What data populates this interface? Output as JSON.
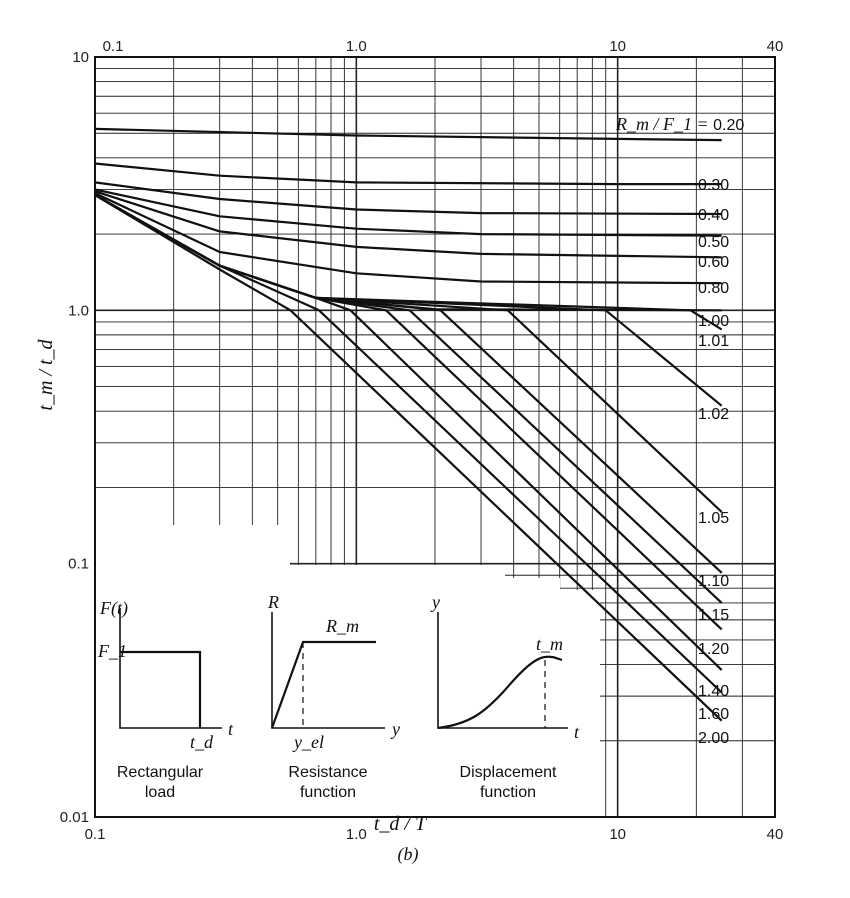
{
  "chart_data": {
    "type": "line",
    "xscale": "log",
    "yscale": "log",
    "xlim": [
      0.1,
      40
    ],
    "ylim": [
      0.01,
      10
    ],
    "xlabel": "t_d / T",
    "ylabel": "t_m / t_d",
    "x_ticks_bottom": [
      "0.1",
      "1.0",
      "10",
      "40"
    ],
    "x_ticks_top": [
      "0.1",
      "1.0",
      "10",
      "40"
    ],
    "y_ticks": [
      "10",
      "1.0",
      "0.1",
      "0.01"
    ],
    "caption": "(b)",
    "series": [
      {
        "name": "0.20",
        "x": [
          0.1,
          1,
          10,
          25
        ],
        "y": [
          5.2,
          4.9,
          4.75,
          4.7
        ]
      },
      {
        "name": "0.30",
        "x": [
          0.1,
          0.3,
          1,
          10,
          25
        ],
        "y": [
          3.8,
          3.4,
          3.2,
          3.15,
          3.15
        ]
      },
      {
        "name": "0.40",
        "x": [
          0.1,
          0.3,
          1,
          3,
          25
        ],
        "y": [
          3.2,
          2.75,
          2.5,
          2.42,
          2.4
        ]
      },
      {
        "name": "0.50",
        "x": [
          0.1,
          0.3,
          1,
          3,
          25
        ],
        "y": [
          3.0,
          2.35,
          2.1,
          2.0,
          1.97
        ]
      },
      {
        "name": "0.60",
        "x": [
          0.1,
          0.3,
          1,
          3,
          25
        ],
        "y": [
          2.95,
          2.05,
          1.78,
          1.67,
          1.62
        ]
      },
      {
        "name": "0.80",
        "x": [
          0.1,
          0.3,
          1,
          3,
          25
        ],
        "y": [
          2.9,
          1.7,
          1.4,
          1.3,
          1.28
        ]
      },
      {
        "name": "1.00",
        "x": [
          0.1,
          0.3,
          0.7,
          2,
          25
        ],
        "y": [
          2.85,
          1.5,
          1.12,
          1.01,
          1.0
        ]
      },
      {
        "name": "1.01",
        "x": [
          0.1,
          0.3,
          0.7,
          19,
          25
        ],
        "y": [
          2.85,
          1.5,
          1.12,
          1.0,
          0.84
        ]
      },
      {
        "name": "1.02",
        "x": [
          0.1,
          0.3,
          0.7,
          9,
          25
        ],
        "y": [
          2.85,
          1.5,
          1.12,
          1.0,
          0.42
        ]
      },
      {
        "name": "1.05",
        "x": [
          0.1,
          0.3,
          0.7,
          3.8,
          25
        ],
        "y": [
          2.85,
          1.5,
          1.12,
          1.0,
          0.16
        ]
      },
      {
        "name": "1.10",
        "x": [
          0.1,
          0.3,
          0.7,
          2.1,
          25
        ],
        "y": [
          2.85,
          1.5,
          1.12,
          1.0,
          0.092
        ]
      },
      {
        "name": "1.15",
        "x": [
          0.1,
          0.3,
          0.7,
          1.6,
          25
        ],
        "y": [
          2.85,
          1.5,
          1.12,
          1.0,
          0.07
        ]
      },
      {
        "name": "1.20",
        "x": [
          0.1,
          0.3,
          0.7,
          1.3,
          25
        ],
        "y": [
          2.85,
          1.5,
          1.12,
          1.0,
          0.055
        ]
      },
      {
        "name": "1.40",
        "x": [
          0.1,
          0.3,
          0.7,
          0.95,
          25
        ],
        "y": [
          2.85,
          1.5,
          1.12,
          1.0,
          0.038
        ]
      },
      {
        "name": "1.60",
        "x": [
          0.1,
          0.3,
          0.72,
          25
        ],
        "y": [
          2.85,
          1.5,
          1.0,
          0.031
        ]
      },
      {
        "name": "2.00",
        "x": [
          0.1,
          0.3,
          0.56,
          25
        ],
        "y": [
          2.85,
          1.45,
          1.0,
          0.024
        ]
      }
    ],
    "curve_label_prefix": "R_m / F_1 =",
    "insets": [
      {
        "ylabel": "F(t)",
        "level_label": "F_1",
        "xlabel": "t",
        "end_label": "t_d",
        "caption_line1": "Rectangular",
        "caption_line2": "load"
      },
      {
        "ylabel": "R",
        "level_label": "R_m",
        "xlabel": "y",
        "end_label": "y_el",
        "caption_line1": "Resistance",
        "caption_line2": "function"
      },
      {
        "ylabel": "y",
        "level_label": "t_m",
        "xlabel": "t",
        "caption_line1": "Displacement",
        "caption_line2": "function"
      }
    ]
  }
}
